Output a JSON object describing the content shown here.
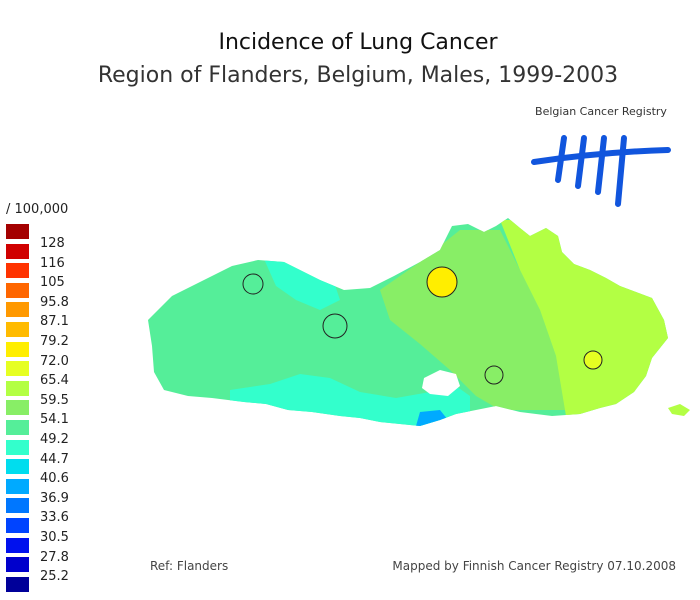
{
  "title": "Incidence of Lung Cancer",
  "subtitle": "Region of Flanders, Belgium, Males, 1999-2003",
  "logo_text": "Belgian Cancer Registry",
  "legend": {
    "unit": "/ 100,000",
    "classes": [
      {
        "label": "128",
        "color": "#a40000"
      },
      {
        "label": "116",
        "color": "#d00000"
      },
      {
        "label": "105",
        "color": "#ff3300"
      },
      {
        "label": "95.8",
        "color": "#ff6600"
      },
      {
        "label": "87.1",
        "color": "#ff9900"
      },
      {
        "label": "79.2",
        "color": "#ffbb00"
      },
      {
        "label": "72.0",
        "color": "#ffee00"
      },
      {
        "label": "65.4",
        "color": "#e6ff22"
      },
      {
        "label": "59.5",
        "color": "#b3ff44"
      },
      {
        "label": "54.1",
        "color": "#88ee66"
      },
      {
        "label": "49.2",
        "color": "#55ee99"
      },
      {
        "label": "44.7",
        "color": "#33ffcc"
      },
      {
        "label": "40.6",
        "color": "#00ddee"
      },
      {
        "label": "36.9",
        "color": "#00aaff"
      },
      {
        "label": "33.6",
        "color": "#0077ff"
      },
      {
        "label": "30.5",
        "color": "#0044ff"
      },
      {
        "label": "27.8",
        "color": "#0011ee"
      },
      {
        "label": "25.2",
        "color": "#0000cc"
      },
      {
        "label": "",
        "color": "#000099"
      }
    ]
  },
  "map_colors": {
    "flanders_outline_fill": "#55ee99",
    "zone_cyan": "#33ffcc",
    "zone_green": "#88ee66",
    "zone_lime": "#b3ff44",
    "zone_blue": "#00aaff",
    "circle_default": "#55ee99",
    "circle_yellow": "#ffee00",
    "circle_lime": "#e6ff22"
  },
  "reference": "Ref: Flanders",
  "credit": "Mapped by Finnish Cancer Registry 07.10.2008"
}
